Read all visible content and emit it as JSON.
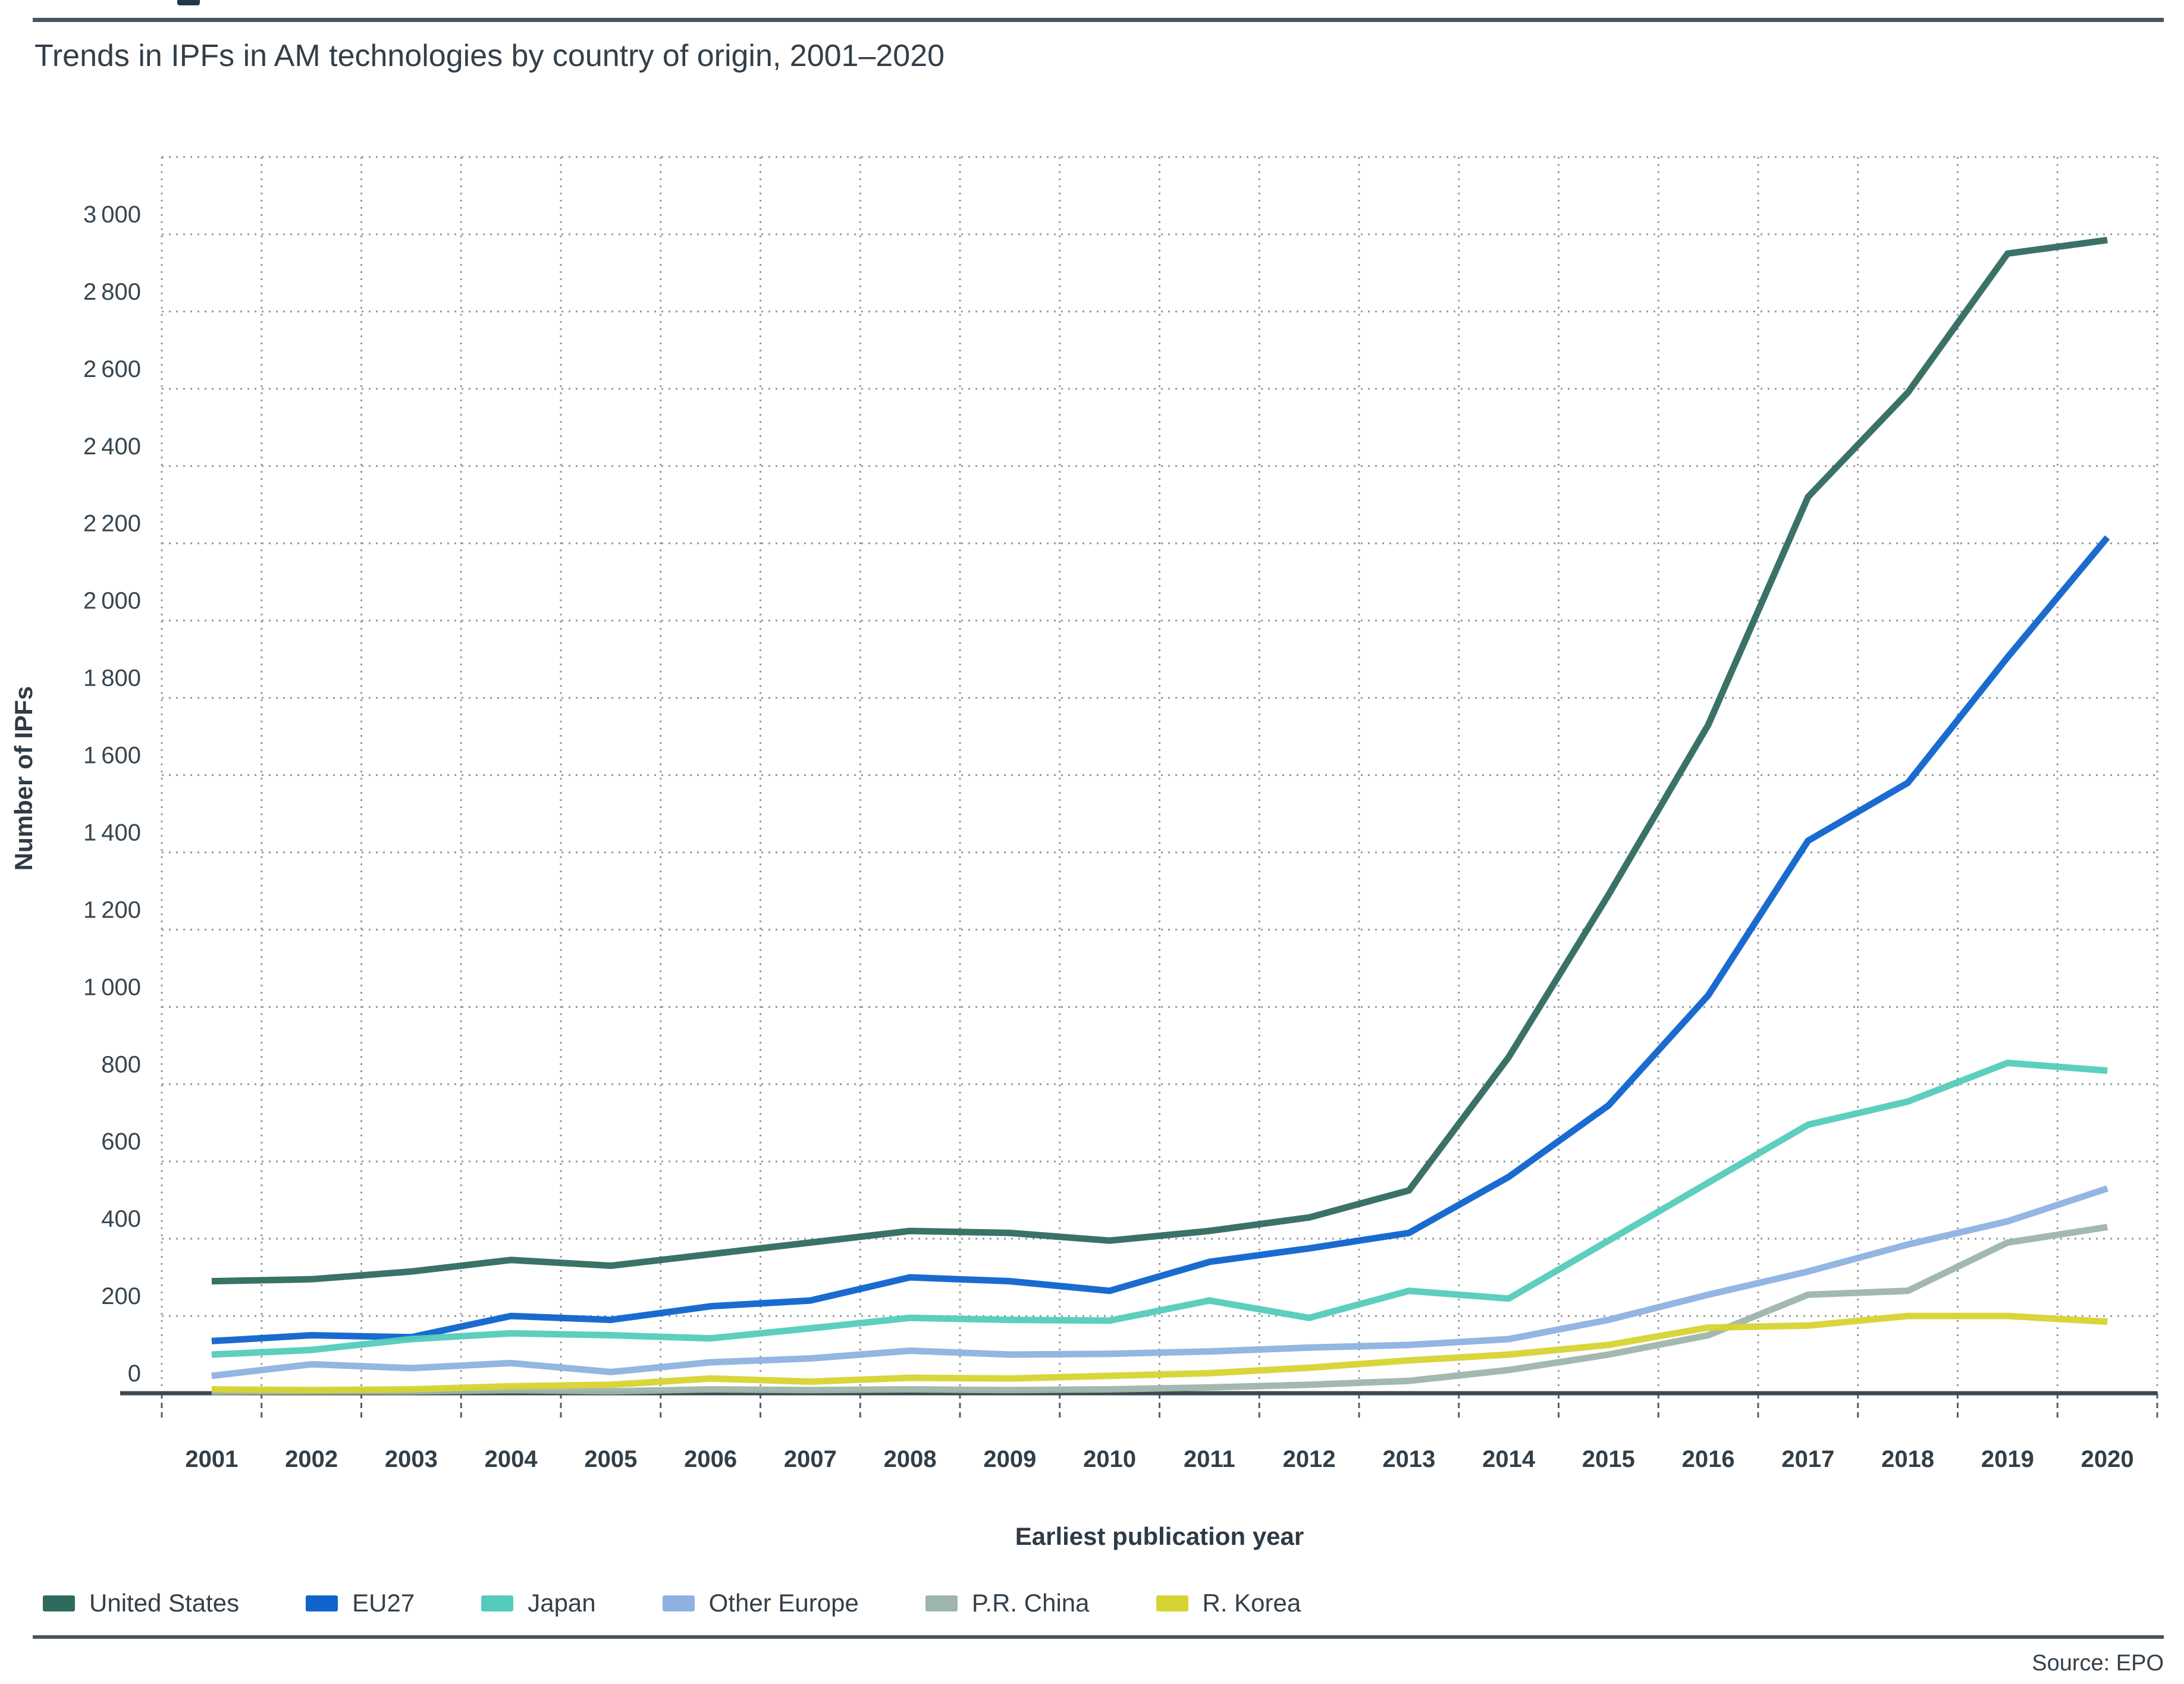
{
  "title": "Trends in IPFs in AM technologies by country of origin, 2001–2020",
  "source": "Source: EPO",
  "axes": {
    "x_title": "Earliest publication year",
    "y_title": "Number of IPFs"
  },
  "colors": {
    "united_states": "#2f6a5f",
    "eu27": "#0e63ce",
    "japan": "#55cbbb",
    "other_europe": "#8db2e0",
    "pr_china": "#9eb5ac",
    "r_korea": "#d6d432",
    "grid": "#9199a1",
    "axis_line": "#3d484f",
    "text_dark": "#333f49",
    "tick_label": "#36454f"
  },
  "chart_data": {
    "type": "line",
    "title": "Trends in IPFs in AM technologies by country of origin, 2001–2020",
    "xlabel": "Earliest publication year",
    "ylabel": "Number of IPFs",
    "categories": [
      2001,
      2002,
      2003,
      2004,
      2005,
      2006,
      2007,
      2008,
      2009,
      2010,
      2011,
      2012,
      2013,
      2014,
      2015,
      2016,
      2017,
      2018,
      2019,
      2020
    ],
    "series": [
      {
        "name": "United States",
        "color": "#2f6a5f",
        "values": [
          290,
          295,
          315,
          345,
          330,
          360,
          390,
          420,
          415,
          395,
          420,
          455,
          525,
          870,
          1290,
          1730,
          2320,
          2590,
          2950,
          2985
        ]
      },
      {
        "name": "EU27",
        "color": "#0e63ce",
        "values": [
          135,
          150,
          145,
          200,
          190,
          225,
          240,
          300,
          290,
          265,
          340,
          375,
          415,
          560,
          745,
          1030,
          1430,
          1580,
          1905,
          2215
        ]
      },
      {
        "name": "Japan",
        "color": "#55cbbb",
        "values": [
          100,
          112,
          140,
          155,
          150,
          142,
          168,
          195,
          190,
          188,
          240,
          195,
          265,
          245,
          395,
          545,
          695,
          755,
          855,
          835
        ]
      },
      {
        "name": "Other Europe",
        "color": "#8db2e0",
        "values": [
          45,
          75,
          65,
          78,
          55,
          80,
          90,
          110,
          100,
          102,
          108,
          118,
          125,
          140,
          190,
          255,
          315,
          385,
          445,
          530
        ]
      },
      {
        "name": "P.R. China",
        "color": "#9eb5ac",
        "values": [
          4,
          5,
          5,
          8,
          5,
          10,
          8,
          10,
          8,
          10,
          15,
          22,
          32,
          60,
          100,
          150,
          255,
          265,
          390,
          430
        ]
      },
      {
        "name": "R. Korea",
        "color": "#d6d432",
        "values": [
          10,
          8,
          10,
          18,
          22,
          38,
          30,
          40,
          38,
          45,
          52,
          66,
          85,
          100,
          125,
          170,
          175,
          200,
          200,
          185
        ]
      }
    ],
    "ylim": [
      0,
      3200
    ],
    "ytick_step": 200,
    "ytick_label_max": 3000,
    "grid": "dotted",
    "legend_position": "bottom"
  }
}
